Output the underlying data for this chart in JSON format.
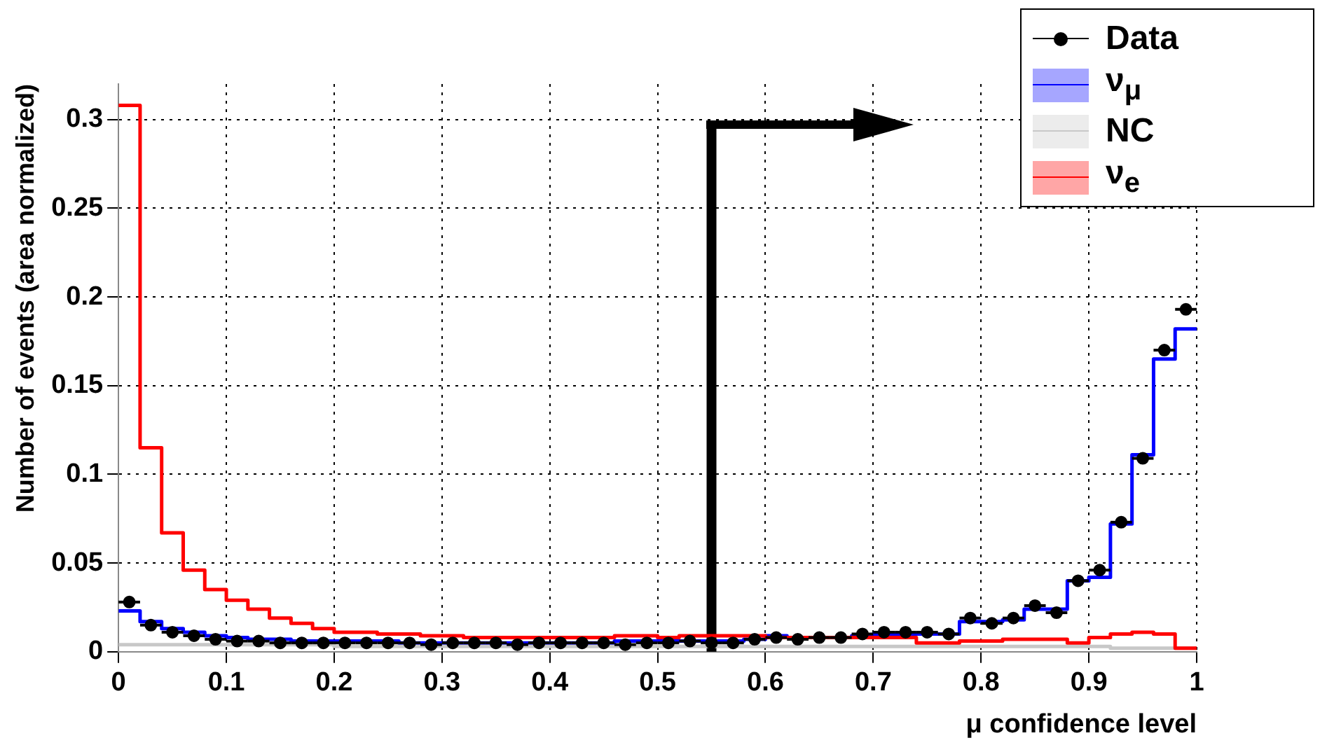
{
  "chart_data": {
    "type": "histogram",
    "xlabel": "μ confidence level",
    "ylabel": "Number of events (area normalized)",
    "bins": [
      0,
      0.02,
      0.04,
      0.06,
      0.08,
      0.1,
      0.12,
      0.14,
      0.16,
      0.18,
      0.2,
      0.22,
      0.24,
      0.26,
      0.28,
      0.3,
      0.32,
      0.34,
      0.36,
      0.38,
      0.4,
      0.42,
      0.44,
      0.46,
      0.48,
      0.5,
      0.52,
      0.54,
      0.56,
      0.58,
      0.6,
      0.62,
      0.64,
      0.66,
      0.68,
      0.7,
      0.72,
      0.74,
      0.76,
      0.78,
      0.8,
      0.82,
      0.84,
      0.86,
      0.88,
      0.9,
      0.92,
      0.94,
      0.96,
      0.98,
      1
    ],
    "series": [
      {
        "name": "Data",
        "type": "scatter",
        "color": "#000000",
        "marker": "circle",
        "x": [
          0.01,
          0.03,
          0.05,
          0.07,
          0.09,
          0.11,
          0.13,
          0.15,
          0.17,
          0.19,
          0.21,
          0.23,
          0.25,
          0.27,
          0.29,
          0.31,
          0.33,
          0.35,
          0.37,
          0.39,
          0.41,
          0.43,
          0.45,
          0.47,
          0.49,
          0.51,
          0.53,
          0.55,
          0.57,
          0.59,
          0.61,
          0.63,
          0.65,
          0.67,
          0.69,
          0.71,
          0.73,
          0.75,
          0.77,
          0.79,
          0.81,
          0.83,
          0.85,
          0.87,
          0.89,
          0.91,
          0.93,
          0.95,
          0.97,
          0.99
        ],
        "values": [
          0.028,
          0.015,
          0.011,
          0.009,
          0.007,
          0.006,
          0.006,
          0.005,
          0.005,
          0.005,
          0.005,
          0.005,
          0.005,
          0.005,
          0.004,
          0.005,
          0.005,
          0.005,
          0.004,
          0.005,
          0.005,
          0.005,
          0.005,
          0.004,
          0.005,
          0.005,
          0.006,
          0.005,
          0.005,
          0.007,
          0.008,
          0.007,
          0.008,
          0.008,
          0.01,
          0.011,
          0.011,
          0.011,
          0.01,
          0.019,
          0.016,
          0.019,
          0.026,
          0.022,
          0.04,
          0.046,
          0.073,
          0.109,
          0.17,
          0.193
        ],
        "xerrors": [
          0.01,
          0.01,
          0.01,
          0.01,
          0.01,
          0.01,
          0.01,
          0.01,
          0.01,
          0.01,
          0.01,
          0.01,
          0.01,
          0.01,
          0.01,
          0.01,
          0.01,
          0.01,
          0.01,
          0.01,
          0.01,
          0.01,
          0.01,
          0.01,
          0.01,
          0.01,
          0.01,
          0.01,
          0.01,
          0.01,
          0.01,
          0.01,
          0.01,
          0.01,
          0.01,
          0.01,
          0.01,
          0.01,
          0.01,
          0.01,
          0.01,
          0.01,
          0.01,
          0.01,
          0.01,
          0.01,
          0.01,
          0.01,
          0.01,
          0.01
        ]
      },
      {
        "name": "ν$_{μ}$",
        "type": "histogram",
        "color": "#0000ff",
        "values": [
          0.023,
          0.017,
          0.013,
          0.011,
          0.009,
          0.008,
          0.007,
          0.007,
          0.006,
          0.006,
          0.006,
          0.006,
          0.006,
          0.005,
          0.005,
          0.005,
          0.005,
          0.005,
          0.005,
          0.005,
          0.005,
          0.005,
          0.005,
          0.006,
          0.006,
          0.006,
          0.006,
          0.006,
          0.006,
          0.007,
          0.009,
          0.008,
          0.008,
          0.008,
          0.009,
          0.01,
          0.01,
          0.01,
          0.01,
          0.017,
          0.017,
          0.018,
          0.024,
          0.024,
          0.04,
          0.042,
          0.072,
          0.111,
          0.165,
          0.182
        ]
      },
      {
        "name": "NC",
        "type": "histogram",
        "color": "#c8c8c8",
        "values": [
          0.004,
          0.004,
          0.004,
          0.004,
          0.004,
          0.004,
          0.004,
          0.004,
          0.004,
          0.004,
          0.003,
          0.003,
          0.003,
          0.003,
          0.003,
          0.003,
          0.003,
          0.003,
          0.003,
          0.003,
          0.003,
          0.003,
          0.003,
          0.003,
          0.003,
          0.003,
          0.003,
          0.003,
          0.003,
          0.003,
          0.003,
          0.003,
          0.003,
          0.003,
          0.003,
          0.003,
          0.003,
          0.003,
          0.003,
          0.003,
          0.003,
          0.003,
          0.003,
          0.003,
          0.003,
          0.003,
          0.002,
          0.002,
          0.002,
          0.002
        ]
      },
      {
        "name": "ν$_{e}$",
        "type": "histogram",
        "color": "#ff0000",
        "values": [
          0.308,
          0.115,
          0.067,
          0.046,
          0.035,
          0.029,
          0.024,
          0.019,
          0.016,
          0.013,
          0.011,
          0.011,
          0.01,
          0.01,
          0.009,
          0.009,
          0.008,
          0.008,
          0.008,
          0.008,
          0.008,
          0.008,
          0.008,
          0.009,
          0.009,
          0.008,
          0.009,
          0.009,
          0.009,
          0.009,
          0.008,
          0.008,
          0.008,
          0.008,
          0.008,
          0.008,
          0.008,
          0.005,
          0.005,
          0.006,
          0.006,
          0.007,
          0.007,
          0.007,
          0.005,
          0.008,
          0.01,
          0.011,
          0.01,
          0.002
        ]
      }
    ],
    "xlim": [
      0,
      1
    ],
    "xticks": [
      0,
      0.1,
      0.2,
      0.3,
      0.4,
      0.5,
      0.6,
      0.7,
      0.8,
      0.9,
      1
    ],
    "ylim": [
      0,
      0.32
    ],
    "yticks": [
      0,
      0.05,
      0.1,
      0.15,
      0.2,
      0.25,
      0.3
    ],
    "ref_lines": [
      {
        "axis": "x",
        "value": 0.55,
        "color": "#000000"
      }
    ],
    "grid": true,
    "legend": "top right"
  }
}
